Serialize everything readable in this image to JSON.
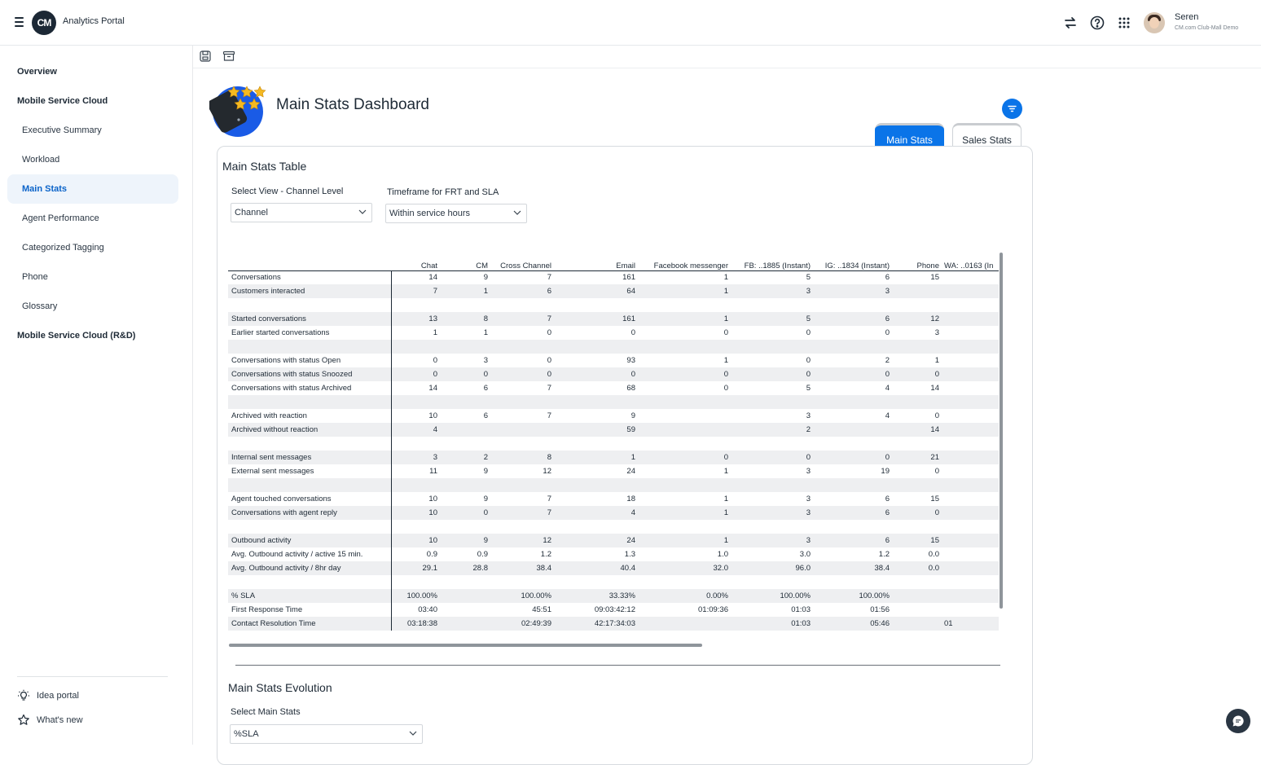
{
  "app": {
    "title": "Analytics Portal",
    "logo_text": "CM"
  },
  "user": {
    "name": "Seren",
    "org": "CM.com Club-Mall Demo"
  },
  "topbar_icons": [
    "swap-icon",
    "help-icon",
    "apps-grid-icon"
  ],
  "sidebar": {
    "items": [
      {
        "label": "Overview",
        "kind": "section"
      },
      {
        "label": "Mobile Service Cloud",
        "kind": "section"
      },
      {
        "label": "Executive Summary",
        "kind": "sub"
      },
      {
        "label": "Workload",
        "kind": "sub"
      },
      {
        "label": "Main Stats",
        "kind": "sub",
        "active": true
      },
      {
        "label": "Agent Performance",
        "kind": "sub"
      },
      {
        "label": "Categorized Tagging",
        "kind": "sub"
      },
      {
        "label": "Phone",
        "kind": "sub"
      },
      {
        "label": "Glossary",
        "kind": "sub"
      },
      {
        "label": "Mobile Service Cloud (R&D)",
        "kind": "section"
      }
    ],
    "footer": {
      "idea": "Idea portal",
      "whats_new": "What's new"
    }
  },
  "dashboard": {
    "title": "Main Stats Dashboard",
    "tabs": {
      "main": "Main Stats",
      "sales": "Sales Stats"
    },
    "accent": "#0a74e8"
  },
  "table_section": {
    "title": "Main Stats Table",
    "view_label": "Select View - Channel Level",
    "view_value": "Channel",
    "timeframe_label": "Timeframe for FRT and SLA",
    "timeframe_value": "Within service hours"
  },
  "table": {
    "columns": [
      "Chat",
      "CM",
      "Cross Channel",
      "Email",
      "Facebook messenger",
      "FB: ..1885 (Instant)",
      "IG: ..1834 (Instant)",
      "Phone",
      "WA: ..0163 (In"
    ],
    "rows": [
      {
        "label": "Conversations",
        "values": [
          "14",
          "9",
          "7",
          "161",
          "1",
          "5",
          "6",
          "15",
          ""
        ]
      },
      {
        "label": "Customers interacted",
        "values": [
          "7",
          "1",
          "6",
          "64",
          "1",
          "3",
          "3",
          "",
          ""
        ]
      },
      {
        "label": "",
        "values": []
      },
      {
        "label": "Started conversations",
        "values": [
          "13",
          "8",
          "7",
          "161",
          "1",
          "5",
          "6",
          "12",
          ""
        ]
      },
      {
        "label": "Earlier started conversations",
        "values": [
          "1",
          "1",
          "0",
          "0",
          "0",
          "0",
          "0",
          "3",
          ""
        ]
      },
      {
        "label": "",
        "values": []
      },
      {
        "label": "Conversations with status Open",
        "values": [
          "0",
          "3",
          "0",
          "93",
          "1",
          "0",
          "2",
          "1",
          ""
        ]
      },
      {
        "label": "Conversations with status Snoozed",
        "values": [
          "0",
          "0",
          "0",
          "0",
          "0",
          "0",
          "0",
          "0",
          ""
        ]
      },
      {
        "label": "Conversations with status Archived",
        "values": [
          "14",
          "6",
          "7",
          "68",
          "0",
          "5",
          "4",
          "14",
          ""
        ]
      },
      {
        "label": "",
        "values": []
      },
      {
        "label": "Archived with reaction",
        "values": [
          "10",
          "6",
          "7",
          "9",
          "",
          "3",
          "4",
          "0",
          ""
        ]
      },
      {
        "label": "Archived without reaction",
        "values": [
          "4",
          "",
          "",
          "59",
          "",
          "2",
          "",
          "14",
          ""
        ]
      },
      {
        "label": "",
        "values": []
      },
      {
        "label": "Internal sent messages",
        "values": [
          "3",
          "2",
          "8",
          "1",
          "0",
          "0",
          "0",
          "21",
          ""
        ]
      },
      {
        "label": "External sent messages",
        "values": [
          "11",
          "9",
          "12",
          "24",
          "1",
          "3",
          "19",
          "0",
          ""
        ]
      },
      {
        "label": "",
        "values": []
      },
      {
        "label": "Agent touched conversations",
        "values": [
          "10",
          "9",
          "7",
          "18",
          "1",
          "3",
          "6",
          "15",
          ""
        ]
      },
      {
        "label": "Conversations with agent reply",
        "values": [
          "10",
          "0",
          "7",
          "4",
          "1",
          "3",
          "6",
          "0",
          ""
        ]
      },
      {
        "label": "",
        "values": []
      },
      {
        "label": "Outbound activity",
        "values": [
          "10",
          "9",
          "12",
          "24",
          "1",
          "3",
          "6",
          "15",
          ""
        ]
      },
      {
        "label": "Avg. Outbound activity / active 15 min.",
        "values": [
          "0.9",
          "0.9",
          "1.2",
          "1.3",
          "1.0",
          "3.0",
          "1.2",
          "0.0",
          ""
        ]
      },
      {
        "label": "Avg. Outbound activity / 8hr day",
        "values": [
          "29.1",
          "28.8",
          "38.4",
          "40.4",
          "32.0",
          "96.0",
          "38.4",
          "0.0",
          ""
        ]
      },
      {
        "label": "",
        "values": []
      },
      {
        "label": "% SLA",
        "values": [
          "100.00%",
          "",
          "100.00%",
          "33.33%",
          "0.00%",
          "100.00%",
          "100.00%",
          "",
          ""
        ]
      },
      {
        "label": "First Response Time",
        "values": [
          "03:40",
          "",
          "45:51",
          "09:03:42:12",
          "01:09:36",
          "01:03",
          "01:56",
          "",
          ""
        ]
      },
      {
        "label": "Contact Resolution Time",
        "values": [
          "03:18:38",
          "",
          "02:49:39",
          "42:17:34:03",
          "",
          "01:03",
          "05:46",
          "",
          "01"
        ]
      }
    ]
  },
  "evolution_section": {
    "title": "Main Stats Evolution",
    "select_label": "Select Main Stats",
    "select_value": "%SLA"
  }
}
